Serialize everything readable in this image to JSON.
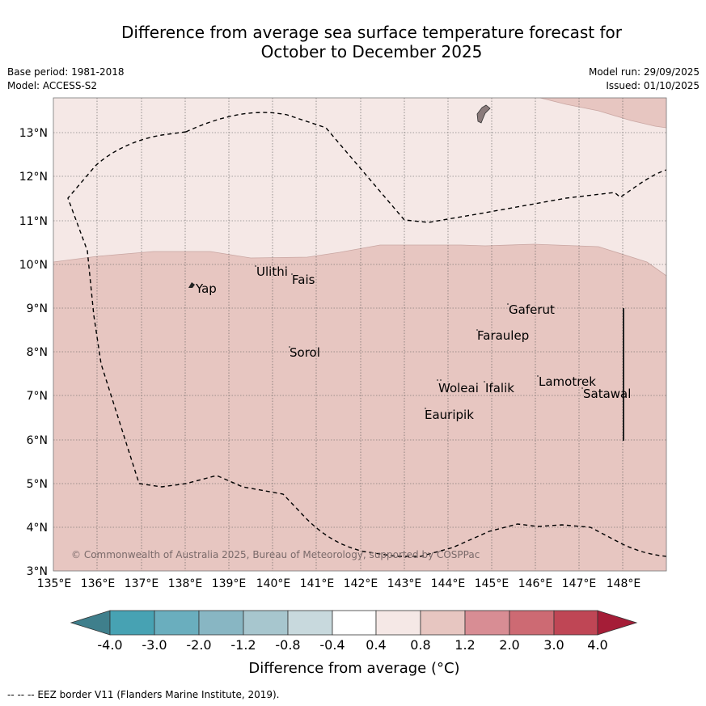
{
  "header": {
    "title_line1": "Difference from average sea surface temperature forecast for",
    "title_line2": "October to December 2025",
    "base_period": "Base period: 1981-2018",
    "model": "Model: ACCESS-S2",
    "model_run": "Model run: 29/09/2025",
    "issued": "Issued: 01/10/2025"
  },
  "map": {
    "lon_labels": [
      "135°E",
      "136°E",
      "137°E",
      "138°E",
      "139°E",
      "140°E",
      "141°E",
      "142°E",
      "143°E",
      "144°E",
      "145°E",
      "146°E",
      "147°E",
      "148°E"
    ],
    "lat_labels": [
      "13°N",
      "12°N",
      "11°N",
      "10°N",
      "9°N",
      "8°N",
      "7°N",
      "6°N",
      "5°N",
      "4°N",
      "3°N"
    ],
    "places": [
      "Yap",
      "Ulithi",
      "Fais",
      "Gaferut",
      "Faraulep",
      "Sorol",
      "Woleai",
      "Ifalik",
      "Lamotrek",
      "Satawal",
      "Eauripik"
    ],
    "copyright": "© Commonwealth of Australia 2025, Bureau of Meteorology, supported by COSPPac",
    "colors": {
      "band_04_08": "#f5e8e6",
      "band_08_12": "#e7c6c1",
      "land": "#8a7a7a"
    }
  },
  "colorbar": {
    "tick_labels": [
      "-4.0",
      "-3.0",
      "-2.0",
      "-1.2",
      "-0.8",
      "-0.4",
      "0.4",
      "0.8",
      "1.2",
      "2.0",
      "3.0",
      "4.0"
    ],
    "colors": [
      "#3f7f8c",
      "#47a2b3",
      "#6aaebe",
      "#88b6c3",
      "#a7c6ce",
      "#c8d9dd",
      "#ffffff",
      "#f5e8e6",
      "#e7c6c1",
      "#d88d94",
      "#cd6a73",
      "#bf4655",
      "#a51d37"
    ],
    "label": "Difference from average (°C)"
  },
  "footer": "--  --  -- EEZ border V11 (Flanders Marine Institute, 2019)."
}
